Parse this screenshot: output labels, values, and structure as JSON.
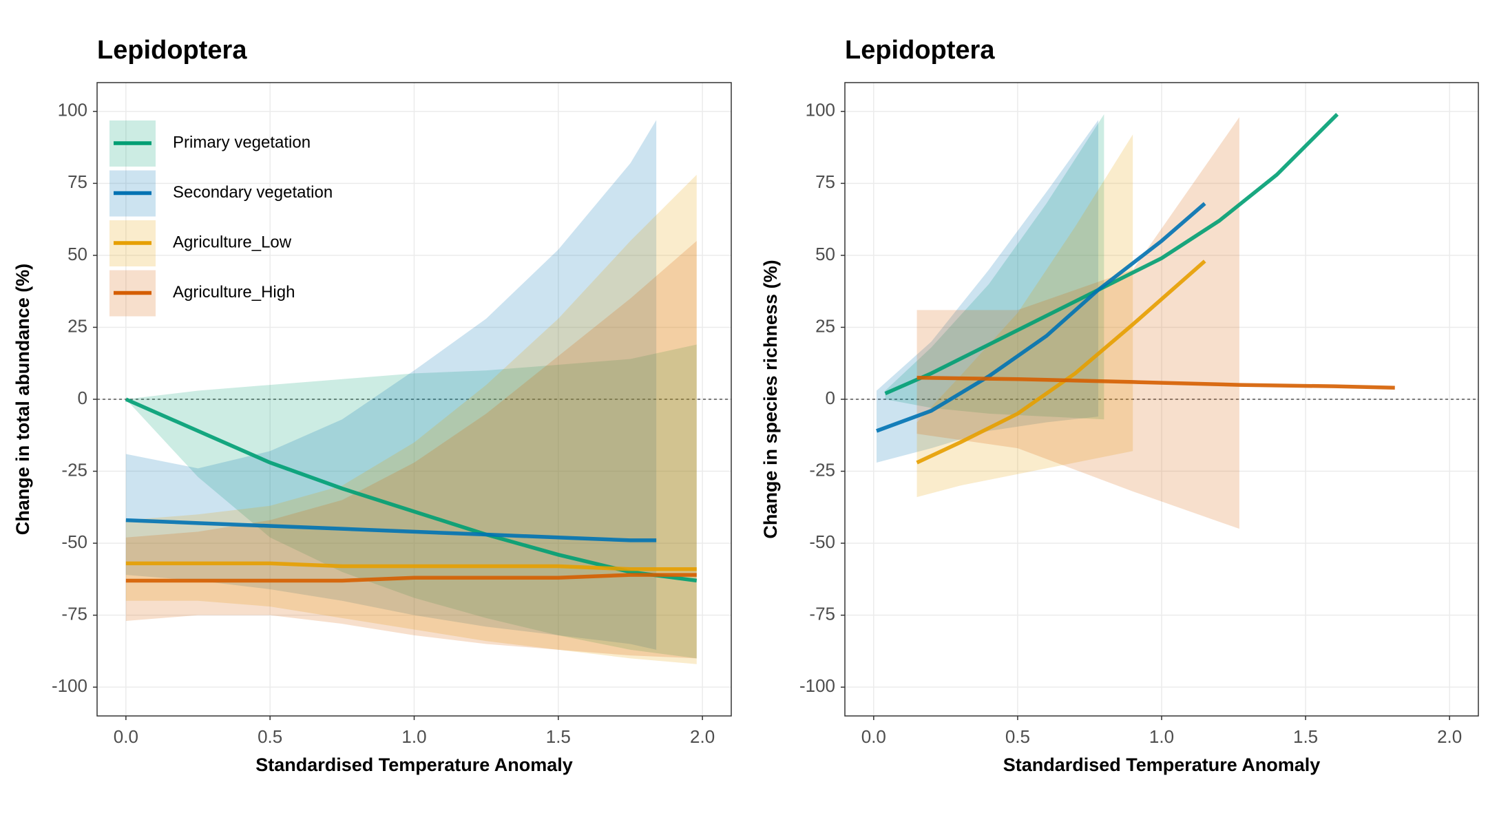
{
  "chart_data": [
    {
      "type": "line",
      "title": "Lepidoptera",
      "x_label": "Standardised Temperature Anomaly",
      "y_label": "Change in total abundance (%)",
      "xlim": [
        -0.1,
        2.1
      ],
      "ylim": [
        -110,
        110
      ],
      "xticks": [
        {
          "value": 0,
          "label": "0.0"
        },
        {
          "value": 0.5,
          "label": "0.5"
        },
        {
          "value": 1,
          "label": "1.0"
        },
        {
          "value": 1.5,
          "label": "1.5"
        },
        {
          "value": 2,
          "label": "2.0"
        }
      ],
      "yticks": [
        -100,
        -75,
        -50,
        -25,
        0,
        25,
        50,
        75,
        100
      ],
      "grid": true,
      "hline": 0,
      "legend": "top-left",
      "series": [
        {
          "name": "Primary vegetation",
          "color": "#009E73",
          "x": [
            0,
            0.25,
            0.5,
            0.75,
            1,
            1.25,
            1.5,
            1.75,
            1.98
          ],
          "values": [
            0,
            -11,
            -22,
            -31,
            -39,
            -47,
            -54,
            -60,
            -63
          ],
          "lower": [
            0,
            -27,
            -48,
            -60,
            -69,
            -76,
            -82,
            -87,
            -90
          ],
          "upper": [
            0,
            3,
            5,
            7,
            9,
            10,
            12,
            14,
            19
          ]
        },
        {
          "name": "Secondary vegetation",
          "color": "#0072B2",
          "x": [
            0,
            0.25,
            0.5,
            0.75,
            1,
            1.25,
            1.5,
            1.75,
            1.84
          ],
          "values": [
            -42,
            -43,
            -44,
            -45,
            -46,
            -47,
            -48,
            -49,
            -49
          ],
          "lower": [
            -61,
            -63,
            -66,
            -70,
            -75,
            -79,
            -82,
            -85,
            -87
          ],
          "upper": [
            -19,
            -24,
            -18,
            -7,
            10,
            28,
            52,
            82,
            97
          ]
        },
        {
          "name": "Agriculture_Low",
          "color": "#E69F00",
          "x": [
            0,
            0.25,
            0.5,
            0.75,
            1,
            1.25,
            1.5,
            1.75,
            1.98
          ],
          "values": [
            -57,
            -57,
            -57,
            -58,
            -58,
            -58,
            -58,
            -59,
            -59
          ],
          "lower": [
            -70,
            -70,
            -72,
            -76,
            -80,
            -84,
            -87,
            -90,
            -92
          ],
          "upper": [
            -42,
            -40,
            -37,
            -30,
            -15,
            5,
            28,
            55,
            78
          ]
        },
        {
          "name": "Agriculture_High",
          "color": "#D55E00",
          "x": [
            0,
            0.25,
            0.5,
            0.75,
            1,
            1.25,
            1.5,
            1.75,
            1.98
          ],
          "values": [
            -63,
            -63,
            -63,
            -63,
            -62,
            -62,
            -62,
            -61,
            -61
          ],
          "lower": [
            -77,
            -75,
            -75,
            -78,
            -82,
            -85,
            -87,
            -89,
            -90
          ],
          "upper": [
            -48,
            -46,
            -42,
            -35,
            -22,
            -5,
            15,
            35,
            55
          ]
        }
      ]
    },
    {
      "type": "line",
      "title": "Lepidoptera",
      "x_label": "Standardised Temperature Anomaly",
      "y_label": "Change in species richness (%)",
      "xlim": [
        -0.1,
        2.1
      ],
      "ylim": [
        -110,
        110
      ],
      "xticks": [
        {
          "value": 0,
          "label": "0.0"
        },
        {
          "value": 0.5,
          "label": "0.5"
        },
        {
          "value": 1,
          "label": "1.0"
        },
        {
          "value": 1.5,
          "label": "1.5"
        },
        {
          "value": 2,
          "label": "2.0"
        }
      ],
      "yticks": [
        -100,
        -75,
        -50,
        -25,
        0,
        25,
        50,
        75,
        100
      ],
      "grid": true,
      "hline": 0,
      "series": [
        {
          "color": "#009E73",
          "x": [
            0.04,
            0.2,
            0.4,
            0.6,
            0.8,
            1.0,
            1.2,
            1.4,
            1.61
          ],
          "values": [
            2,
            9,
            19,
            29,
            39,
            49,
            62,
            78,
            99
          ],
          "lower": [
            0,
            -3,
            -5,
            -6,
            -7,
            null,
            null,
            null,
            null
          ],
          "upper": [
            3,
            18,
            40,
            68,
            99,
            null,
            null,
            null,
            null
          ]
        },
        {
          "color": "#0072B2",
          "x": [
            0.01,
            0.2,
            0.4,
            0.6,
            0.78,
            1.0,
            1.15
          ],
          "values": [
            -11,
            -4,
            8,
            22,
            38,
            55,
            68
          ],
          "lower": [
            -22,
            -17,
            -11,
            -8,
            -6,
            null,
            null
          ],
          "upper": [
            3,
            20,
            45,
            72,
            97,
            null,
            null
          ]
        },
        {
          "color": "#E69F00",
          "x": [
            0.15,
            0.3,
            0.5,
            0.7,
            0.9,
            1.15
          ],
          "values": [
            -22,
            -15,
            -5,
            9,
            26,
            48
          ],
          "lower": [
            -34,
            -30,
            -26,
            -22,
            -18,
            null
          ],
          "upper": [
            -8,
            8,
            30,
            60,
            92,
            null
          ]
        },
        {
          "color": "#D55E00",
          "x": [
            0.15,
            0.5,
            0.9,
            1.27,
            1.6,
            1.81
          ],
          "values": [
            7.5,
            7,
            6,
            5,
            4.5,
            4
          ],
          "lower": [
            -12,
            -17,
            -32,
            -45,
            null,
            null
          ],
          "upper": [
            31,
            31,
            45,
            98,
            null,
            null
          ]
        }
      ]
    }
  ]
}
